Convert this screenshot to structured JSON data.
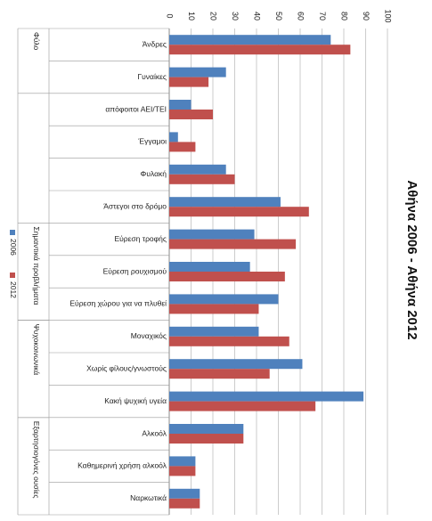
{
  "chart_data": {
    "type": "bar",
    "orientation": "horizontal",
    "title": "Αθήνα 2006 - Αθήνα 2012",
    "categories": [
      "Άνδρες",
      "Γυναίκες",
      "απόφοιτοι ΑΕΙ/ΤΕΙ",
      "Έγγαμοι",
      "Φυλακή",
      "Άστεγοι στο δρόμο",
      "Εύρεση τροφής",
      "Εύρεση ρουχισμού",
      "Εύρεση χώρου για να πλυθεί",
      "Μοναχικός",
      "Χωρίς φίλους/γνωστούς",
      "Κακή ψυχική υγεία",
      "Αλκοόλ",
      "Καθημερινή χρήση αλκοόλ",
      "Ναρκωτικά"
    ],
    "series": [
      {
        "name": "2006",
        "color": "#4f81bd",
        "values": [
          74,
          26,
          10,
          4,
          26,
          51,
          39,
          37,
          50,
          41,
          61,
          89,
          34,
          12,
          14
        ]
      },
      {
        "name": "2012",
        "color": "#c0504d",
        "values": [
          83,
          18,
          20,
          12,
          30,
          64,
          58,
          53,
          41,
          55,
          46,
          67,
          34,
          12,
          14
        ]
      }
    ],
    "groups": [
      {
        "label": "Φύλο",
        "from": 0,
        "to": 1
      },
      {
        "label": "Σημαντικά προβλήματα",
        "from": 6,
        "to": 8
      },
      {
        "label": "Ψυχοκοινωνικά",
        "from": 9,
        "to": 11
      },
      {
        "label": "Εξαρτησιογόνες ουσίες",
        "from": 12,
        "to": 14
      }
    ],
    "value_axis": {
      "min": 0,
      "max": 100,
      "step": 10,
      "ticks": [
        "0",
        "10",
        "20",
        "30",
        "40",
        "50",
        "60",
        "70",
        "80",
        "90",
        "100"
      ]
    },
    "grid": true,
    "legend_position": "left"
  }
}
